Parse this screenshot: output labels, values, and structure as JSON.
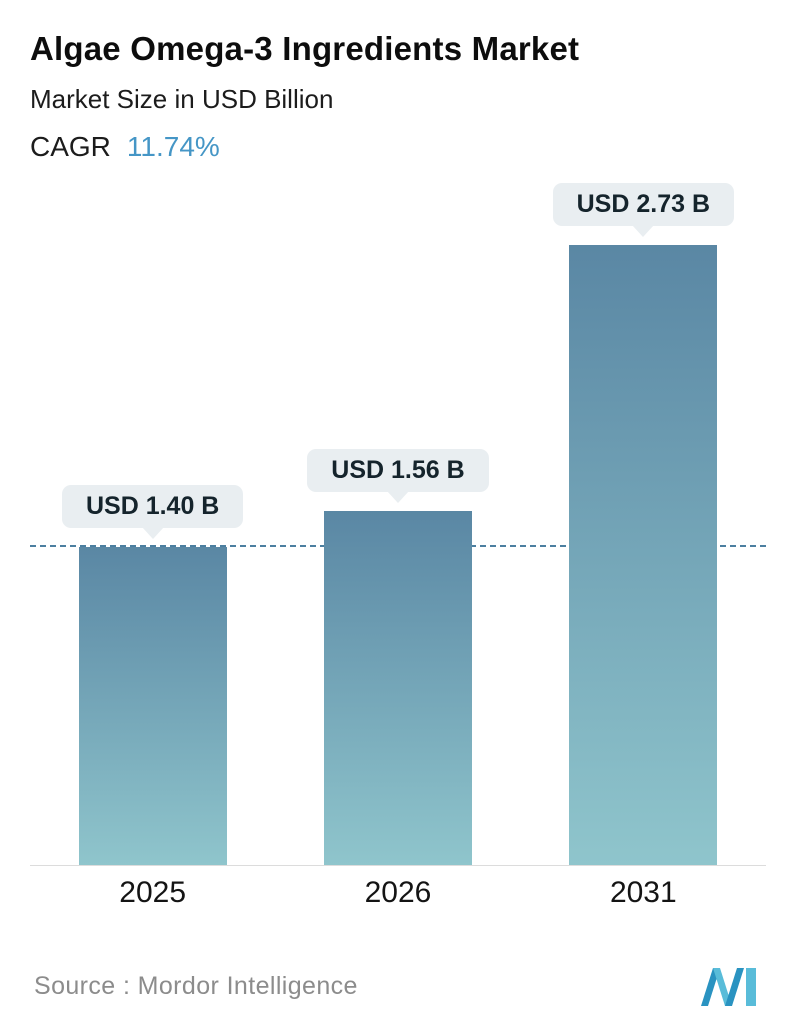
{
  "header": {
    "title": "Algae Omega-3 Ingredients Market",
    "subtitle": "Market Size in USD Billion",
    "cagr_label": "CAGR",
    "cagr_value": "11.74%",
    "cagr_value_color": "#4596c6"
  },
  "chart_data": {
    "type": "bar",
    "title": "Algae Omega-3 Ingredients Market",
    "ylabel": "Market Size in USD Billion",
    "categories": [
      "2025",
      "2026",
      "2031"
    ],
    "values": [
      1.4,
      1.56,
      2.73
    ],
    "value_labels": [
      "USD 1.40 B",
      "USD 1.56 B",
      "USD 2.73 B"
    ],
    "unit": "USD Billion",
    "ylim": [
      0,
      2.73
    ],
    "grid": false,
    "legend": "none",
    "reference_line": {
      "at_value": 1.4,
      "style": "dashed",
      "color": "#4c7fa0"
    },
    "bar_gradient_top": "#5a87a4",
    "bar_gradient_bottom": "#8fc5cc"
  },
  "footer": {
    "source": "Source :  Mordor Intelligence",
    "logo": "mordor-intelligence-logo"
  }
}
